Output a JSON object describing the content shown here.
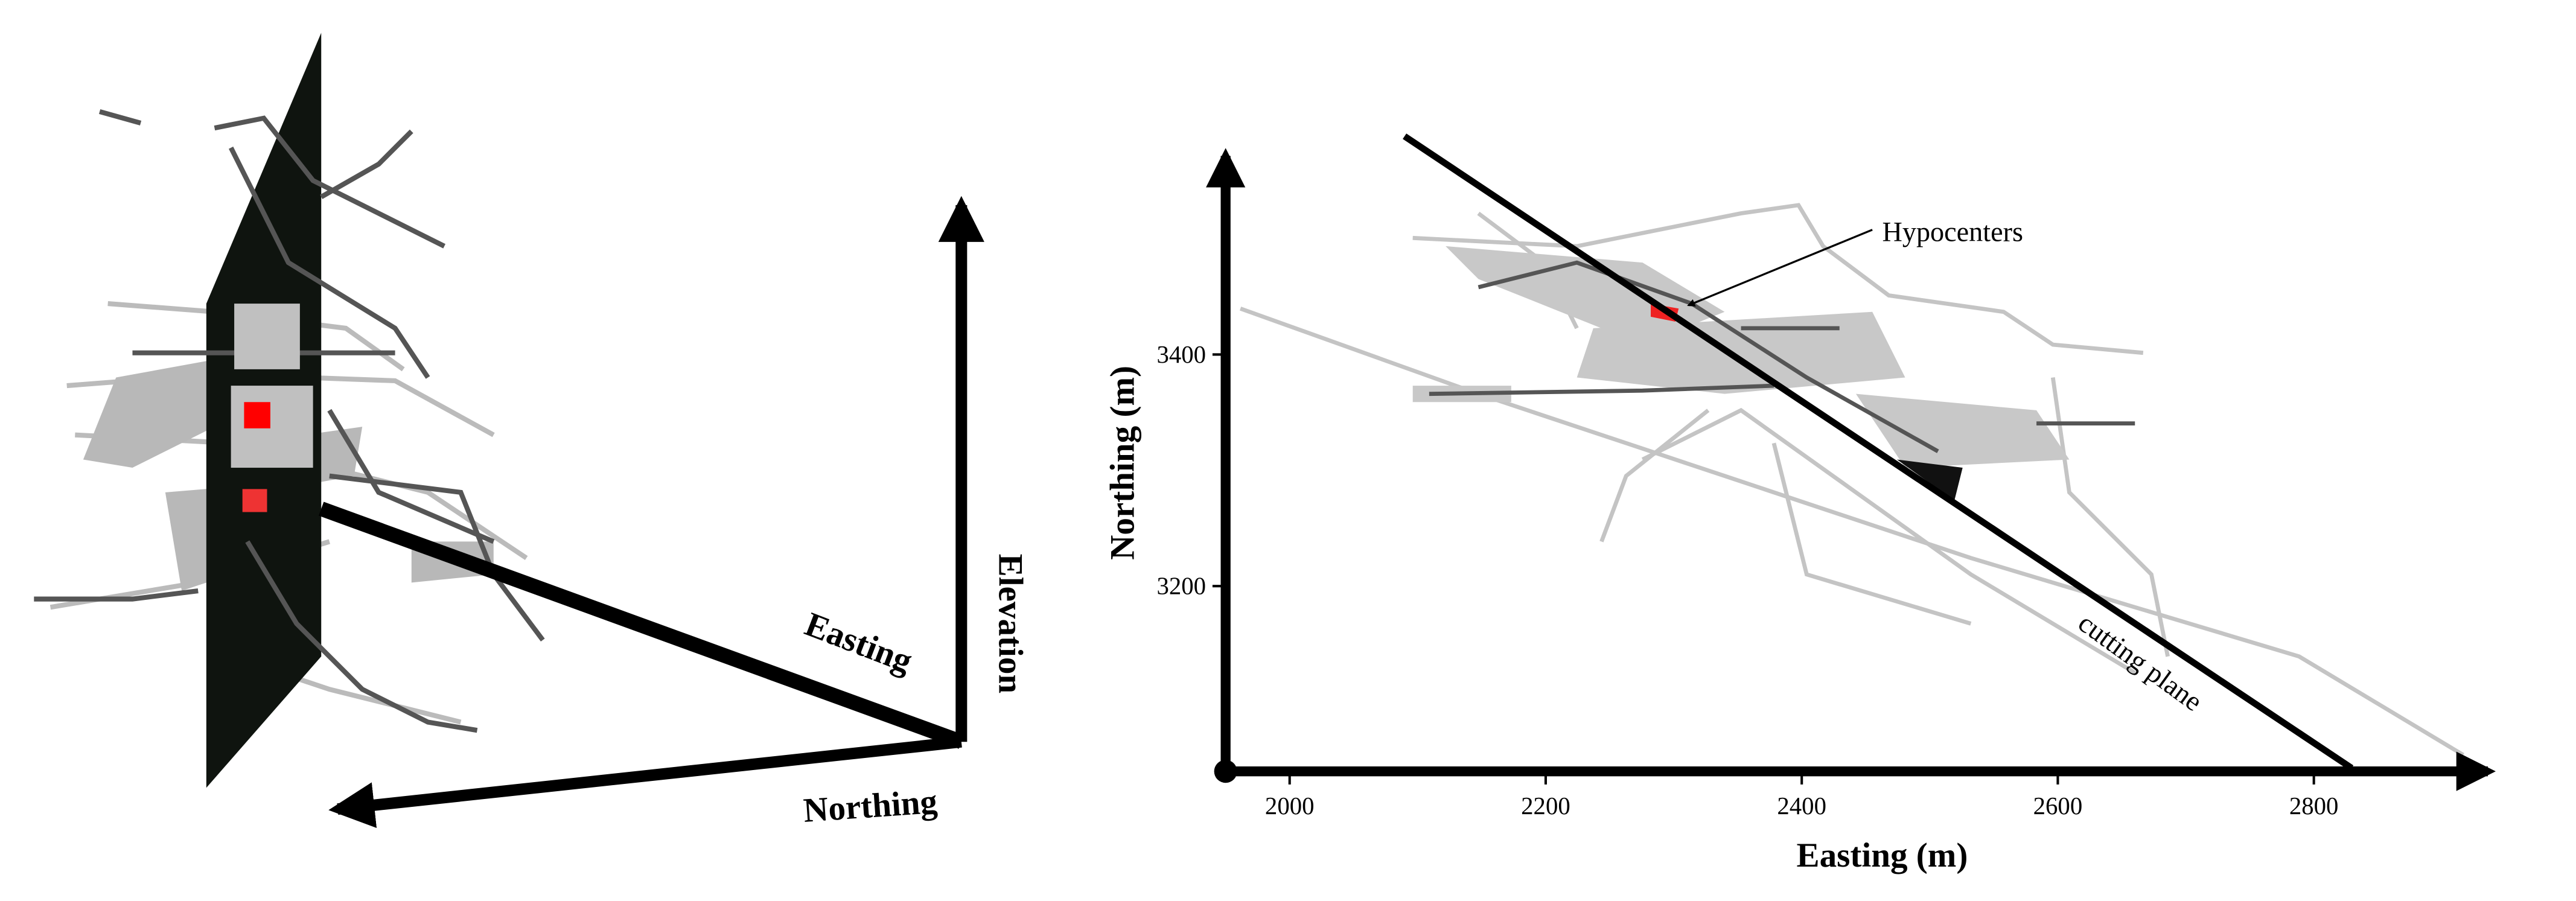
{
  "left_panel": {
    "axis_labels": {
      "easting": "Easting",
      "northing": "Northing",
      "elevation": "Elevation"
    }
  },
  "right_panel": {
    "xlabel": "Easting (m)",
    "ylabel": "Northing (m)",
    "xlim": [
      1950,
      2950
    ],
    "ylim": [
      3040,
      3580
    ],
    "xticks": [
      2000,
      2200,
      2400,
      2600,
      2800
    ],
    "yticks": [
      3200,
      3400
    ],
    "annotations": {
      "hypocenters": "Hypocenters",
      "cutting_plane": "cutting plane"
    }
  }
}
